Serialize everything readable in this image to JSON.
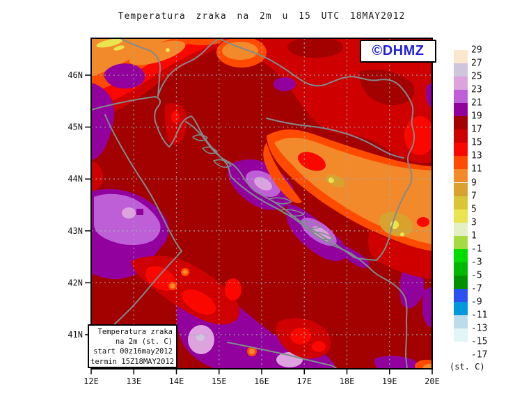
{
  "title": "Temperatura zraka na 2m u 15 UTC 18MAY2012",
  "watermark": {
    "text": "©DHMZ"
  },
  "info_box": {
    "lines": [
      "Temperatura zraka",
      "na 2m (st. C)",
      "start 00z16may2012",
      "termin 15Z18MAY2012"
    ]
  },
  "axes": {
    "lat": [
      "46N",
      "45N",
      "44N",
      "43N",
      "42N",
      "41N"
    ],
    "lon": [
      "12E",
      "13E",
      "14E",
      "15E",
      "16E",
      "17E",
      "18E",
      "19E",
      "20E"
    ]
  },
  "legend": {
    "unit": "(st. C)",
    "labels": [
      "29",
      "27",
      "25",
      "23",
      "21",
      "19",
      "17",
      "15",
      "13",
      "11",
      "9",
      "7",
      "5",
      "3",
      "1",
      "-1",
      "-3",
      "-5",
      "-7",
      "-9",
      "-11",
      "-13",
      "-15",
      "-17"
    ],
    "colors": [
      "#FBE7CE",
      "#CFC5DD",
      "#DCA3DF",
      "#BE5FD8",
      "#92009E",
      "#A30000",
      "#CE0000",
      "#FA0700",
      "#FF4B00",
      "#F2892B",
      "#D9A12E",
      "#D9C535",
      "#E9E44F",
      "#E4EFC3",
      "#A5DB3F",
      "#00DC00",
      "#00B800",
      "#009000",
      "#2A50F0",
      "#0098DC",
      "#BBDCE8",
      "#E2F6F8",
      "#FEFFFF"
    ]
  },
  "palette": {
    "peach": "#FBE7CE",
    "lavender": "#CFC5DD",
    "lilac": "#DCA3DF",
    "orchid": "#BE5FD8",
    "purple": "#92009E",
    "darkred": "#A30000",
    "red": "#CE0000",
    "brightred": "#FA0700",
    "orangered": "#FF4B00",
    "orange": "#F2892B",
    "tan": "#D9A12E",
    "gold": "#D9C535",
    "yellow": "#E9E44F",
    "grid": "#9FB0B0",
    "coast": "#7F8C8D",
    "frame": "#000000",
    "logo_blue": "#2222DE"
  },
  "chart_data": {
    "type": "heatmap",
    "subtype": "filled-contour weather map (GrADS)",
    "title": "Temperatura zraka na 2m u 15 UTC 18MAY2012",
    "variable": "Air temperature at 2 m",
    "unit": "st. C",
    "valid_time": "15 UTC 18MAY2012",
    "model_start": "00z16may2012",
    "region": "Croatia / Adriatic (12E-20E, ~40.6N-46.7N)",
    "xlabel_ticks": [
      "12E",
      "13E",
      "14E",
      "15E",
      "16E",
      "17E",
      "18E",
      "19E",
      "20E"
    ],
    "ylabel_ticks": [
      "46N",
      "45N",
      "44N",
      "43N",
      "42N",
      "41N"
    ],
    "contour_interval_c": 2,
    "colorbar_levels_c": [
      29,
      27,
      25,
      23,
      21,
      19,
      17,
      15,
      13,
      11,
      9,
      7,
      5,
      3,
      1,
      -1,
      -3,
      -5,
      -7,
      -9,
      -11,
      -13,
      -15,
      -17
    ],
    "legend_position": "right",
    "grid": "dashed lat/lon graticule every 1 degree",
    "field_summary": [
      {
        "area": "background over most of domain (Adriatic sea and inland)",
        "temp_c": "17-19"
      },
      {
        "area": "NW corner / Alpine edge diagonal band",
        "temp_c": "5-13"
      },
      {
        "area": "north edge near 14-15E (orange blob)",
        "temp_c": "9-13"
      },
      {
        "area": "west edge 12E between 44N and 46.5N (purple band)",
        "temp_c": "19-23"
      },
      {
        "area": "left-center blob 12-13.5E 43-44N with bright core",
        "temp_c": "19-25"
      },
      {
        "area": "central Adriatic coast Zadar-Split (purple band with cores)",
        "temp_c": "19-25"
      },
      {
        "area": "NE quadrant Slavonia (red zone)",
        "temp_c": "15-17"
      },
      {
        "area": "SE diagonal band across Bosnia mountains (orange/tan)",
        "temp_c": "5-13"
      },
      {
        "area": "yellow spots in E Bosnia mountains",
        "temp_c": "5-7"
      },
      {
        "area": "bottom-center purple patches 14.5-17E near 41N",
        "temp_c": "19-25"
      },
      {
        "area": "Montenegro/Albania right-edge patches",
        "temp_c": "19-23"
      }
    ]
  }
}
